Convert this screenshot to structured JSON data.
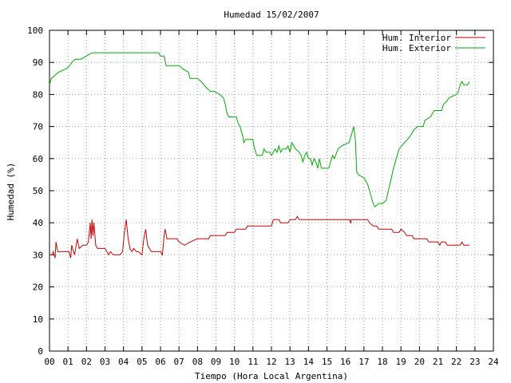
{
  "chart_data": {
    "type": "line",
    "title": "Humedad 15/02/2007",
    "xlabel": "Tiempo (Hora Local Argentina)",
    "ylabel": "Humedad (%)",
    "xlim": [
      0,
      24
    ],
    "ylim": [
      0,
      100
    ],
    "grid": true,
    "legend_position": "top-right",
    "x_tick_labels": [
      "00",
      "01",
      "02",
      "03",
      "04",
      "05",
      "06",
      "07",
      "08",
      "09",
      "10",
      "11",
      "12",
      "13",
      "14",
      "15",
      "16",
      "17",
      "18",
      "19",
      "20",
      "21",
      "22",
      "23",
      "24"
    ],
    "y_tick_labels": [
      "0",
      "10",
      "20",
      "30",
      "40",
      "50",
      "60",
      "70",
      "80",
      "90",
      "100"
    ],
    "series": [
      {
        "name": "Hum. Interior",
        "color": "#cc0000",
        "points": [
          [
            0.0,
            30
          ],
          [
            0.15,
            30
          ],
          [
            0.2,
            31
          ],
          [
            0.3,
            29
          ],
          [
            0.35,
            34
          ],
          [
            0.45,
            31
          ],
          [
            0.8,
            31
          ],
          [
            1.05,
            31
          ],
          [
            1.1,
            30
          ],
          [
            1.15,
            29
          ],
          [
            1.2,
            33
          ],
          [
            1.3,
            31
          ],
          [
            1.35,
            30
          ],
          [
            1.5,
            35
          ],
          [
            1.6,
            32
          ],
          [
            1.8,
            33
          ],
          [
            2.0,
            33
          ],
          [
            2.1,
            34
          ],
          [
            2.15,
            37
          ],
          [
            2.2,
            40
          ],
          [
            2.25,
            35
          ],
          [
            2.3,
            41
          ],
          [
            2.35,
            36
          ],
          [
            2.4,
            40
          ],
          [
            2.5,
            33
          ],
          [
            2.6,
            32
          ],
          [
            2.8,
            32
          ],
          [
            3.0,
            32
          ],
          [
            3.1,
            31
          ],
          [
            3.2,
            30
          ],
          [
            3.3,
            31
          ],
          [
            3.45,
            30
          ],
          [
            3.8,
            30
          ],
          [
            3.95,
            31
          ],
          [
            4.05,
            37
          ],
          [
            4.15,
            41
          ],
          [
            4.25,
            35
          ],
          [
            4.35,
            32
          ],
          [
            4.45,
            31
          ],
          [
            4.55,
            32
          ],
          [
            4.7,
            31
          ],
          [
            4.8,
            31
          ],
          [
            5.0,
            30
          ],
          [
            5.1,
            35
          ],
          [
            5.2,
            38
          ],
          [
            5.3,
            33
          ],
          [
            5.5,
            31
          ],
          [
            5.8,
            31
          ],
          [
            6.0,
            31
          ],
          [
            6.1,
            30
          ],
          [
            6.2,
            36
          ],
          [
            6.25,
            38
          ],
          [
            6.35,
            35
          ],
          [
            6.5,
            35
          ],
          [
            6.9,
            35
          ],
          [
            7.0,
            34
          ],
          [
            7.3,
            33
          ],
          [
            7.6,
            34
          ],
          [
            8.0,
            35
          ],
          [
            8.6,
            35
          ],
          [
            8.7,
            36
          ],
          [
            9.5,
            36
          ],
          [
            9.6,
            37
          ],
          [
            10.0,
            37
          ],
          [
            10.1,
            38
          ],
          [
            10.6,
            38
          ],
          [
            10.7,
            39
          ],
          [
            12.0,
            39
          ],
          [
            12.1,
            41
          ],
          [
            12.4,
            41
          ],
          [
            12.5,
            40
          ],
          [
            12.9,
            40
          ],
          [
            13.0,
            41
          ],
          [
            13.3,
            41
          ],
          [
            13.4,
            42
          ],
          [
            13.5,
            41
          ],
          [
            16.2,
            41
          ],
          [
            16.3,
            40
          ],
          [
            16.3,
            41
          ],
          [
            17.2,
            41
          ],
          [
            17.3,
            40
          ],
          [
            17.5,
            39
          ],
          [
            17.7,
            39
          ],
          [
            17.8,
            38
          ],
          [
            18.5,
            38
          ],
          [
            18.6,
            37
          ],
          [
            18.9,
            37
          ],
          [
            19.0,
            38
          ],
          [
            19.2,
            37
          ],
          [
            19.3,
            36
          ],
          [
            19.6,
            36
          ],
          [
            19.7,
            35
          ],
          [
            20.4,
            35
          ],
          [
            20.5,
            34
          ],
          [
            21.0,
            34
          ],
          [
            21.1,
            33
          ],
          [
            21.2,
            34
          ],
          [
            21.4,
            34
          ],
          [
            21.5,
            33
          ],
          [
            22.2,
            33
          ],
          [
            22.3,
            34
          ],
          [
            22.4,
            33
          ],
          [
            22.6,
            33
          ],
          [
            22.7,
            33
          ]
        ]
      },
      {
        "name": "Hum. Exterior",
        "color": "#00aa00",
        "points": [
          [
            0.0,
            83
          ],
          [
            0.1,
            85
          ],
          [
            0.3,
            86
          ],
          [
            0.5,
            87
          ],
          [
            0.9,
            88
          ],
          [
            1.1,
            89
          ],
          [
            1.2,
            90
          ],
          [
            1.4,
            91
          ],
          [
            1.7,
            91
          ],
          [
            2.0,
            92
          ],
          [
            2.3,
            93
          ],
          [
            3.0,
            93
          ],
          [
            5.9,
            93
          ],
          [
            6.0,
            92
          ],
          [
            6.2,
            92
          ],
          [
            6.3,
            89
          ],
          [
            7.0,
            89
          ],
          [
            7.2,
            88
          ],
          [
            7.5,
            87
          ],
          [
            7.6,
            85
          ],
          [
            8.0,
            85
          ],
          [
            8.2,
            84
          ],
          [
            8.5,
            82
          ],
          [
            8.7,
            81
          ],
          [
            8.9,
            81
          ],
          [
            9.2,
            80
          ],
          [
            9.4,
            79
          ],
          [
            9.5,
            77
          ],
          [
            9.6,
            74
          ],
          [
            9.7,
            73
          ],
          [
            9.9,
            73
          ],
          [
            10.1,
            73
          ],
          [
            10.2,
            71
          ],
          [
            10.3,
            70
          ],
          [
            10.45,
            67
          ],
          [
            10.5,
            65
          ],
          [
            10.6,
            66
          ],
          [
            10.8,
            66
          ],
          [
            11.0,
            66
          ],
          [
            11.05,
            64
          ],
          [
            11.1,
            63
          ],
          [
            11.2,
            61
          ],
          [
            11.5,
            61
          ],
          [
            11.6,
            63
          ],
          [
            11.7,
            62
          ],
          [
            11.9,
            62
          ],
          [
            12.0,
            61
          ],
          [
            12.1,
            62
          ],
          [
            12.2,
            63
          ],
          [
            12.3,
            62
          ],
          [
            12.4,
            64
          ],
          [
            12.5,
            62
          ],
          [
            12.6,
            63
          ],
          [
            12.8,
            63
          ],
          [
            12.9,
            64
          ],
          [
            13.0,
            62
          ],
          [
            13.1,
            65
          ],
          [
            13.2,
            64
          ],
          [
            13.3,
            63
          ],
          [
            13.5,
            62
          ],
          [
            13.6,
            61
          ],
          [
            13.7,
            59
          ],
          [
            13.8,
            61
          ],
          [
            13.9,
            62
          ],
          [
            14.0,
            60
          ],
          [
            14.1,
            60
          ],
          [
            14.2,
            58
          ],
          [
            14.3,
            60
          ],
          [
            14.4,
            59
          ],
          [
            14.5,
            57
          ],
          [
            14.6,
            60
          ],
          [
            14.7,
            57
          ],
          [
            15.1,
            57
          ],
          [
            15.2,
            59
          ],
          [
            15.3,
            61
          ],
          [
            15.4,
            60
          ],
          [
            15.6,
            63
          ],
          [
            15.8,
            64
          ],
          [
            16.2,
            65
          ],
          [
            16.3,
            67
          ],
          [
            16.4,
            69
          ],
          [
            16.45,
            70
          ],
          [
            16.55,
            65
          ],
          [
            16.6,
            56
          ],
          [
            16.7,
            55
          ],
          [
            17.0,
            54
          ],
          [
            17.2,
            52
          ],
          [
            17.3,
            50
          ],
          [
            17.4,
            48
          ],
          [
            17.5,
            46
          ],
          [
            17.6,
            45
          ],
          [
            17.8,
            46
          ],
          [
            18.0,
            46
          ],
          [
            18.2,
            47
          ],
          [
            18.4,
            52
          ],
          [
            18.6,
            57
          ],
          [
            18.8,
            61
          ],
          [
            18.9,
            63
          ],
          [
            19.2,
            65
          ],
          [
            19.5,
            67
          ],
          [
            19.7,
            69
          ],
          [
            19.9,
            70
          ],
          [
            20.2,
            70
          ],
          [
            20.3,
            72
          ],
          [
            20.6,
            73
          ],
          [
            20.8,
            75
          ],
          [
            21.0,
            75
          ],
          [
            21.2,
            75
          ],
          [
            21.3,
            77
          ],
          [
            21.5,
            78
          ],
          [
            21.6,
            79
          ],
          [
            22.0,
            80
          ],
          [
            22.1,
            81
          ],
          [
            22.2,
            83
          ],
          [
            22.3,
            84
          ],
          [
            22.4,
            83
          ],
          [
            22.6,
            83
          ],
          [
            22.7,
            84
          ]
        ]
      }
    ]
  }
}
